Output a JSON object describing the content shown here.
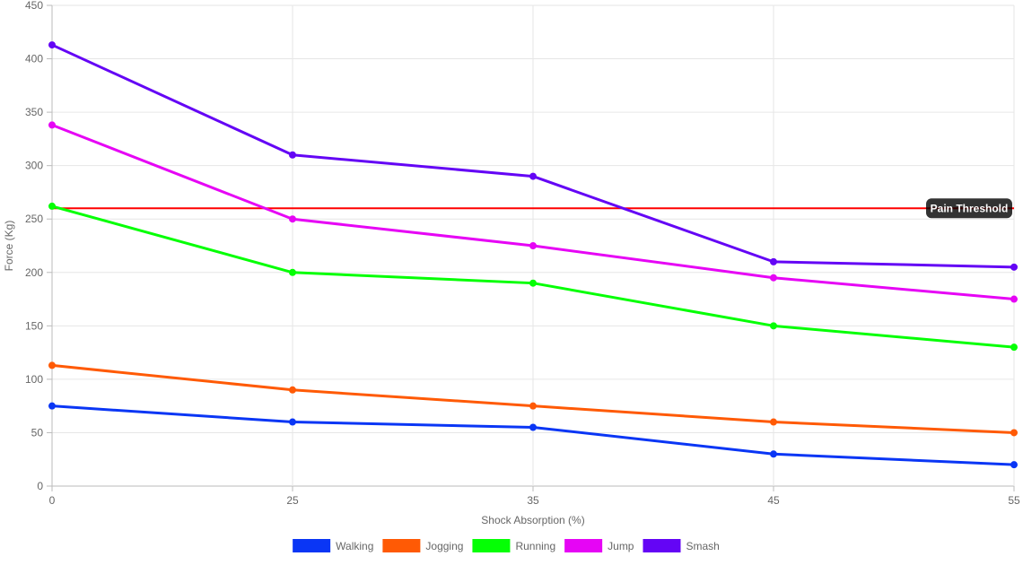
{
  "chart_data": {
    "type": "line",
    "title": "",
    "xlabel": "Shock Absorption (%)",
    "ylabel": "Force (Kg)",
    "categories": [
      "0",
      "25",
      "35",
      "45",
      "55"
    ],
    "ylim": [
      0,
      450
    ],
    "yticks": [
      0,
      50,
      100,
      150,
      200,
      250,
      300,
      350,
      400,
      450
    ],
    "grid": true,
    "legend_position": "bottom",
    "series": [
      {
        "name": "Walking",
        "color": "#0a36f5",
        "values": [
          75,
          60,
          55,
          30,
          20
        ]
      },
      {
        "name": "Jogging",
        "color": "#ff5a05",
        "values": [
          113,
          90,
          75,
          60,
          50
        ]
      },
      {
        "name": "Running",
        "color": "#05ff05",
        "values": [
          262,
          200,
          190,
          150,
          130
        ]
      },
      {
        "name": "Jump",
        "color": "#e605f5",
        "values": [
          338,
          250,
          225,
          195,
          175
        ]
      },
      {
        "name": "Smash",
        "color": "#6405f5",
        "values": [
          413,
          310,
          290,
          210,
          205
        ]
      }
    ],
    "annotations": [
      {
        "type": "horizontal-line",
        "value": 260,
        "label": "Pain Threshold",
        "color": "#ff0000"
      }
    ]
  }
}
